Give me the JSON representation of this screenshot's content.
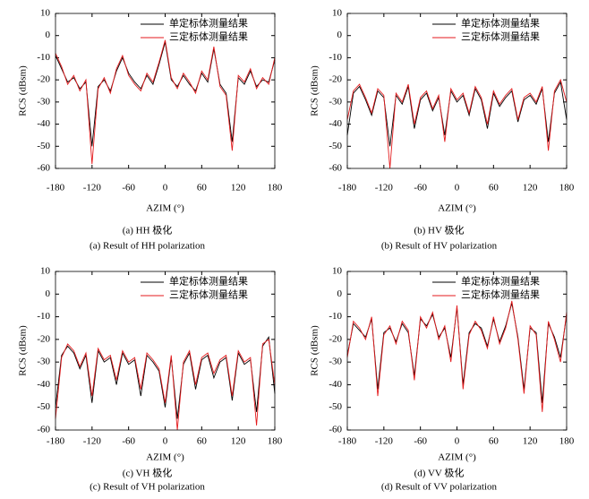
{
  "chart_data": [
    {
      "type": "line",
      "xlabel": "AZIM (°)",
      "ylabel": "RCS (dBsm)",
      "caption_cn": "(a) HH 极化",
      "caption_en": "(a) Result of HH polarization",
      "legend": "upper right",
      "x": [
        -180,
        -170,
        -160,
        -150,
        -140,
        -130,
        -120,
        -110,
        -100,
        -90,
        -80,
        -70,
        -60,
        -50,
        -40,
        -30,
        -20,
        -10,
        0,
        10,
        20,
        30,
        40,
        50,
        60,
        70,
        80,
        90,
        100,
        110,
        120,
        130,
        140,
        150,
        160,
        170,
        180
      ],
      "xlim": [
        -180,
        180
      ],
      "ylim": [
        -60,
        10
      ],
      "xticks": [
        -180,
        -120,
        -60,
        0,
        60,
        120,
        180
      ],
      "yticks": [
        10,
        0,
        -10,
        -20,
        -30,
        -40,
        -50,
        -60
      ],
      "series": [
        {
          "name": "单定标体测量结果",
          "color": "#000000",
          "values": [
            -9,
            -15,
            -21,
            -19,
            -24,
            -21,
            -50,
            -23,
            -20,
            -25,
            -16,
            -10,
            -17,
            -21,
            -24,
            -18,
            -22,
            -13,
            -3,
            -20,
            -23,
            -18,
            -22,
            -25,
            -17,
            -21,
            -6,
            -22,
            -26,
            -48,
            -19,
            -22,
            -16,
            -23,
            -20,
            -21,
            -11
          ]
        },
        {
          "name": "三定标体测量结果",
          "color": "#e41a1c",
          "values": [
            -8,
            -14,
            -22,
            -18,
            -25,
            -20,
            -58,
            -24,
            -19,
            -26,
            -15,
            -9,
            -18,
            -22,
            -25,
            -17,
            -21,
            -12,
            -2,
            -19,
            -24,
            -17,
            -21,
            -26,
            -16,
            -20,
            -5,
            -23,
            -27,
            -52,
            -18,
            -21,
            -15,
            -24,
            -19,
            -22,
            -10
          ]
        }
      ]
    },
    {
      "type": "line",
      "xlabel": "AZIM (°)",
      "ylabel": "RCS (dBsm)",
      "caption_cn": "(b) HV 极化",
      "caption_en": "(b) Result of HV polarization",
      "legend": "upper right",
      "x": [
        -180,
        -170,
        -160,
        -150,
        -140,
        -130,
        -120,
        -110,
        -100,
        -90,
        -80,
        -70,
        -60,
        -50,
        -40,
        -30,
        -20,
        -10,
        0,
        10,
        20,
        30,
        40,
        50,
        60,
        70,
        80,
        90,
        100,
        110,
        120,
        130,
        140,
        150,
        160,
        170,
        180
      ],
      "xlim": [
        -180,
        180
      ],
      "ylim": [
        -60,
        10
      ],
      "xticks": [
        -180,
        -120,
        -60,
        0,
        60,
        120,
        180
      ],
      "yticks": [
        10,
        0,
        -10,
        -20,
        -30,
        -40,
        -50,
        -60
      ],
      "series": [
        {
          "name": "单定标体测量结果",
          "color": "#000000",
          "values": [
            -45,
            -26,
            -23,
            -29,
            -36,
            -25,
            -28,
            -50,
            -27,
            -31,
            -23,
            -42,
            -29,
            -26,
            -34,
            -28,
            -45,
            -25,
            -30,
            -27,
            -36,
            -24,
            -29,
            -42,
            -26,
            -32,
            -28,
            -25,
            -39,
            -29,
            -27,
            -31,
            -24,
            -48,
            -26,
            -21,
            -38
          ]
        },
        {
          "name": "三定标体测量结果",
          "color": "#e41a1c",
          "values": [
            -38,
            -25,
            -22,
            -28,
            -35,
            -24,
            -27,
            -60,
            -26,
            -30,
            -22,
            -40,
            -28,
            -25,
            -33,
            -27,
            -48,
            -24,
            -29,
            -26,
            -35,
            -23,
            -28,
            -40,
            -25,
            -31,
            -27,
            -24,
            -38,
            -28,
            -26,
            -30,
            -23,
            -52,
            -25,
            -20,
            -30
          ]
        }
      ]
    },
    {
      "type": "line",
      "xlabel": "AZIM (°)",
      "ylabel": "RCS (dBsm)",
      "caption_cn": "(c) VH 极化",
      "caption_en": "(c) Result of VH polarization",
      "legend": "upper right",
      "x": [
        -180,
        -170,
        -160,
        -150,
        -140,
        -130,
        -120,
        -110,
        -100,
        -90,
        -80,
        -70,
        -60,
        -50,
        -40,
        -30,
        -20,
        -10,
        0,
        10,
        20,
        30,
        40,
        50,
        60,
        70,
        80,
        90,
        100,
        110,
        120,
        130,
        140,
        150,
        160,
        170,
        180
      ],
      "xlim": [
        -180,
        180
      ],
      "ylim": [
        -60,
        10
      ],
      "xticks": [
        -180,
        -120,
        -60,
        0,
        60,
        120,
        180
      ],
      "yticks": [
        10,
        0,
        -10,
        -20,
        -30,
        -40,
        -50,
        -60
      ],
      "series": [
        {
          "name": "单定标体测量结果",
          "color": "#000000",
          "values": [
            -50,
            -27,
            -23,
            -26,
            -33,
            -27,
            -48,
            -25,
            -30,
            -28,
            -40,
            -26,
            -31,
            -29,
            -45,
            -27,
            -30,
            -34,
            -50,
            -28,
            -55,
            -31,
            -26,
            -42,
            -29,
            -27,
            -37,
            -30,
            -28,
            -47,
            -26,
            -31,
            -29,
            -52,
            -23,
            -19,
            -44
          ]
        },
        {
          "name": "三定标体测量结果",
          "color": "#e41a1c",
          "values": [
            -55,
            -28,
            -22,
            -25,
            -32,
            -26,
            -45,
            -24,
            -29,
            -27,
            -38,
            -25,
            -30,
            -28,
            -42,
            -26,
            -29,
            -33,
            -48,
            -27,
            -60,
            -30,
            -25,
            -40,
            -28,
            -26,
            -35,
            -29,
            -27,
            -45,
            -25,
            -30,
            -28,
            -58,
            -22,
            -20,
            -40
          ]
        }
      ]
    },
    {
      "type": "line",
      "xlabel": "AZIM (°)",
      "ylabel": "RCS (dBsm)",
      "caption_cn": "(d) VV 极化",
      "caption_en": "(d) Result of VV polarization",
      "legend": "upper right",
      "x": [
        -180,
        -170,
        -160,
        -150,
        -140,
        -130,
        -120,
        -110,
        -100,
        -90,
        -80,
        -70,
        -60,
        -50,
        -40,
        -30,
        -20,
        -10,
        0,
        10,
        20,
        30,
        40,
        50,
        60,
        70,
        80,
        90,
        100,
        110,
        120,
        130,
        140,
        150,
        160,
        170,
        180
      ],
      "xlim": [
        -180,
        180
      ],
      "ylim": [
        -60,
        10
      ],
      "xticks": [
        -180,
        -120,
        -60,
        0,
        60,
        120,
        180
      ],
      "yticks": [
        10,
        0,
        -10,
        -20,
        -30,
        -40,
        -50,
        -60
      ],
      "series": [
        {
          "name": "单定标体测量结果",
          "color": "#000000",
          "values": [
            -27,
            -13,
            -16,
            -19,
            -11,
            -42,
            -17,
            -15,
            -21,
            -13,
            -17,
            -36,
            -11,
            -14,
            -9,
            -19,
            -15,
            -28,
            -6,
            -40,
            -17,
            -13,
            -15,
            -23,
            -11,
            -21,
            -14,
            -4,
            -19,
            -42,
            -15,
            -17,
            -48,
            -13,
            -19,
            -28,
            -9
          ]
        },
        {
          "name": "三定标体测量结果",
          "color": "#e41a1c",
          "values": [
            -28,
            -12,
            -15,
            -20,
            -10,
            -45,
            -18,
            -14,
            -22,
            -12,
            -16,
            -38,
            -10,
            -15,
            -8,
            -20,
            -14,
            -30,
            -5,
            -42,
            -18,
            -12,
            -16,
            -24,
            -10,
            -22,
            -15,
            -3,
            -20,
            -44,
            -14,
            -18,
            -52,
            -12,
            -20,
            -30,
            -8
          ]
        }
      ]
    }
  ]
}
